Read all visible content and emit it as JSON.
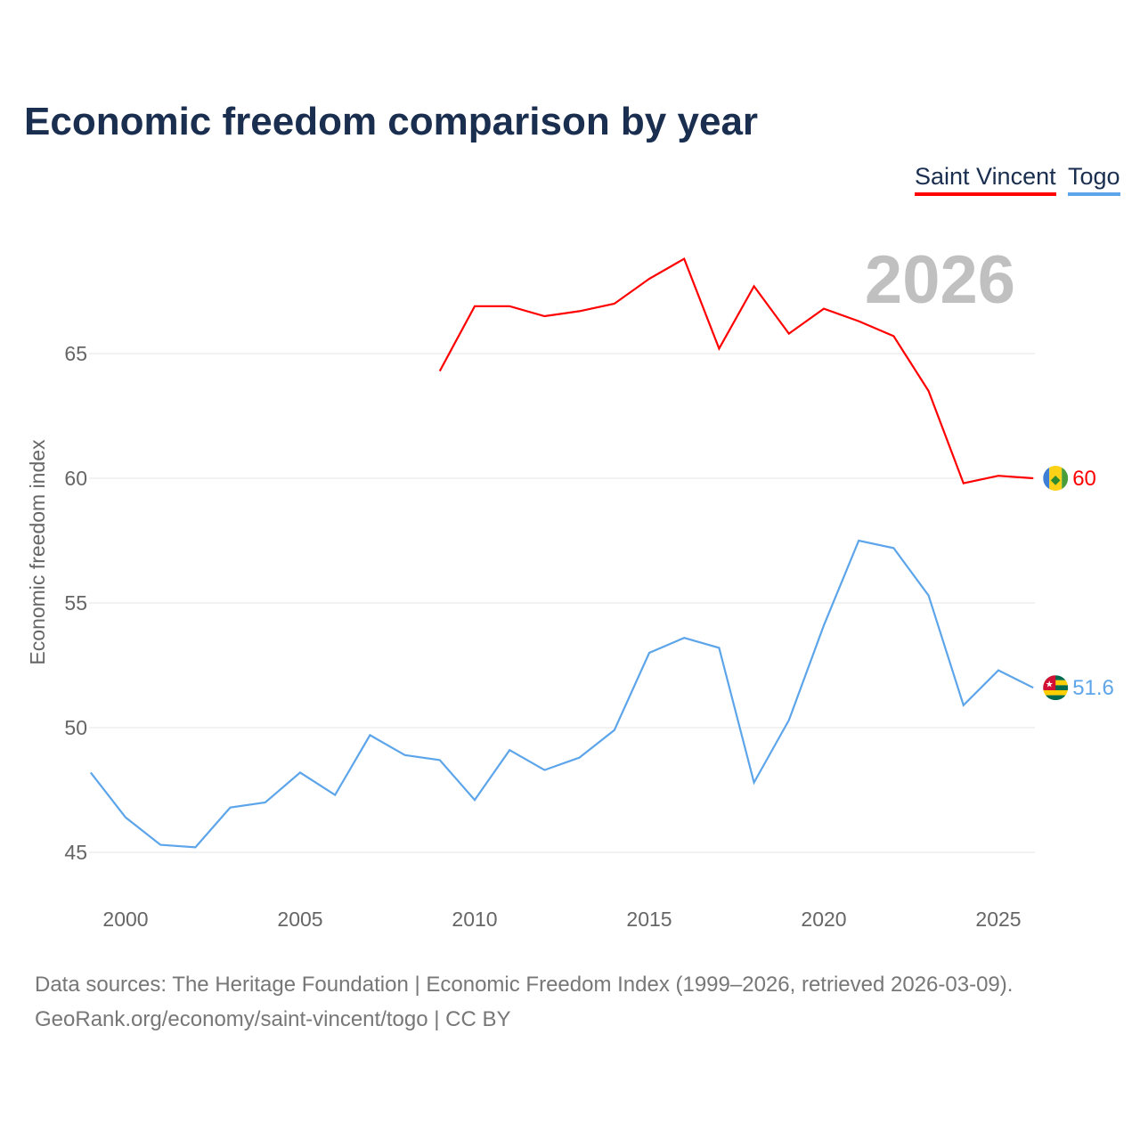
{
  "title": "Economic freedom comparison by year",
  "year_watermark": "2026",
  "footer": {
    "line1": "Data sources: The Heritage Foundation | Economic Freedom Index (1999–2026, retrieved 2026-03-09).",
    "line2": "GeoRank.org/economy/saint-vincent/togo | CC BY"
  },
  "chart_data": {
    "type": "line",
    "title": "Economic freedom comparison by year",
    "xlabel": "",
    "ylabel": "Economic freedom index",
    "xlim": [
      1999,
      2026
    ],
    "ylim": [
      43.5,
      70
    ],
    "xticks": [
      2000,
      2005,
      2010,
      2015,
      2020,
      2025
    ],
    "yticks": [
      45,
      50,
      55,
      60,
      65
    ],
    "grid": true,
    "legend_position": "top-right",
    "series": [
      {
        "name": "Saint Vincent",
        "color": "#ff0000",
        "end_label": "60",
        "x": [
          2009,
          2010,
          2011,
          2012,
          2013,
          2014,
          2015,
          2016,
          2017,
          2018,
          2019,
          2020,
          2021,
          2022,
          2023,
          2024,
          2025,
          2026
        ],
        "y": [
          64.3,
          66.9,
          66.9,
          66.5,
          66.7,
          67.0,
          68.0,
          68.8,
          65.2,
          67.7,
          65.8,
          66.8,
          66.3,
          65.7,
          63.5,
          59.8,
          60.1,
          60.0
        ]
      },
      {
        "name": "Togo",
        "color": "#5da5ea",
        "end_label": "51.6",
        "x": [
          1999,
          2000,
          2001,
          2002,
          2003,
          2004,
          2005,
          2006,
          2007,
          2008,
          2009,
          2010,
          2011,
          2012,
          2013,
          2014,
          2015,
          2016,
          2017,
          2018,
          2019,
          2020,
          2021,
          2022,
          2023,
          2024,
          2025,
          2026
        ],
        "y": [
          48.2,
          46.4,
          45.3,
          45.2,
          46.8,
          47.0,
          48.2,
          47.3,
          49.7,
          48.9,
          48.7,
          47.1,
          49.1,
          48.3,
          48.8,
          49.9,
          53.0,
          53.6,
          53.2,
          47.8,
          50.3,
          54.1,
          57.5,
          57.2,
          55.3,
          50.9,
          52.3,
          51.6
        ]
      }
    ]
  }
}
